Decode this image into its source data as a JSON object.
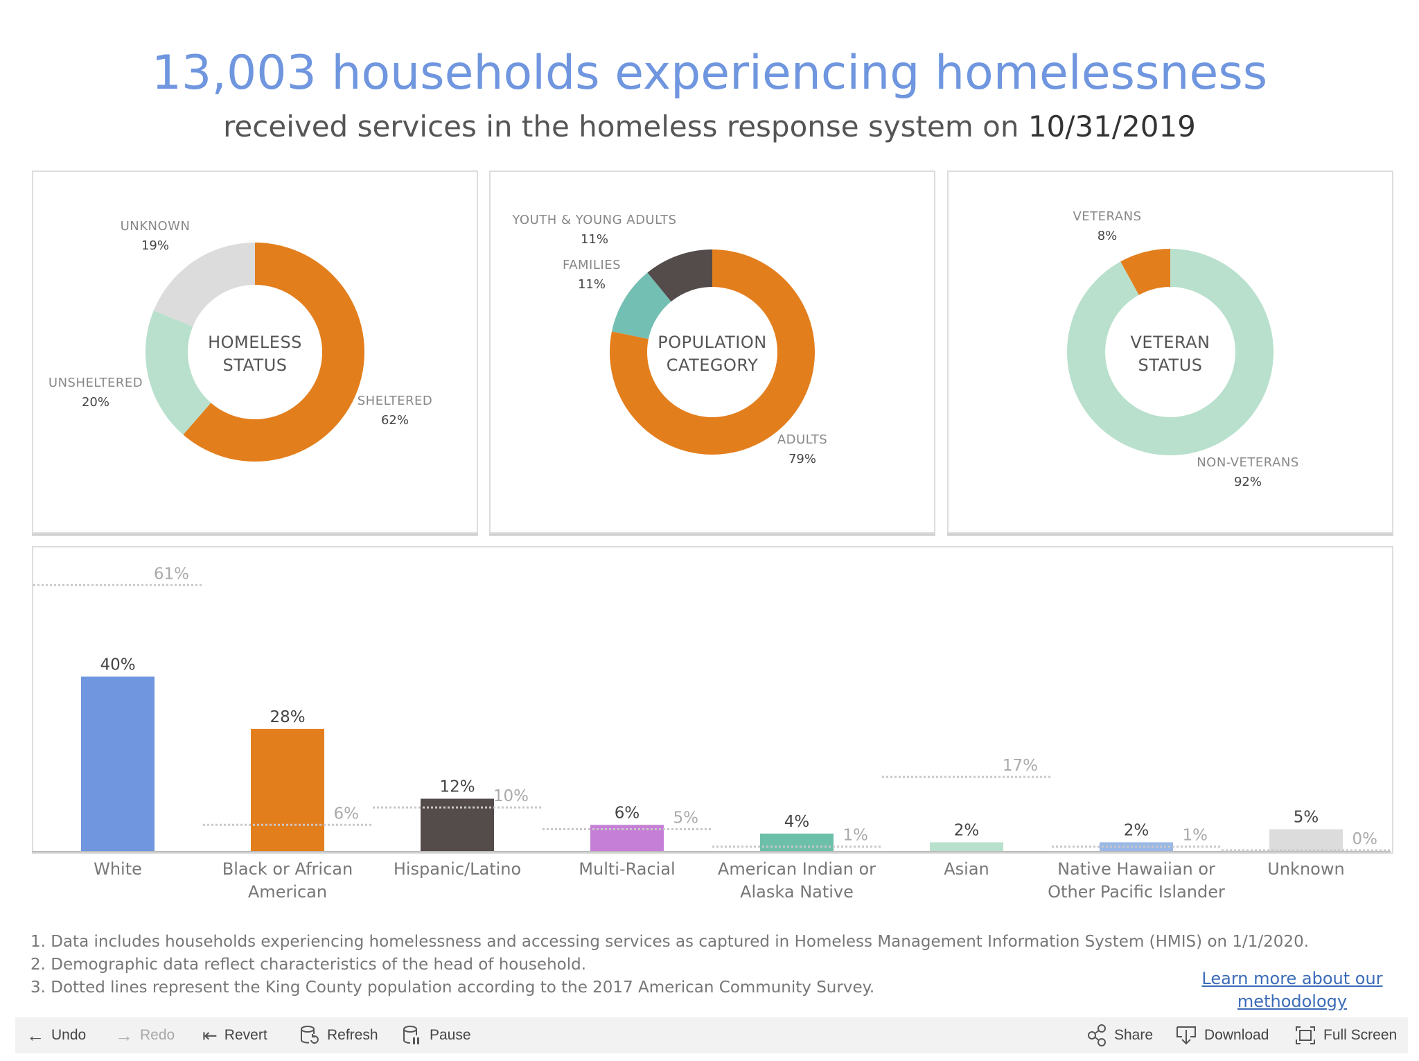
{
  "header": {
    "title": "13,003 households experiencing homelessness",
    "subtitle_prefix": "received services in the homeless response system on ",
    "subtitle_date": "10/31/2019"
  },
  "chart_data": [
    {
      "type": "pie",
      "center_label": [
        "HOMELESS",
        "STATUS"
      ],
      "slices": [
        {
          "label": "SHELTERED",
          "value": 62,
          "pct_label": "62%",
          "color": "#e37e1d"
        },
        {
          "label": "UNSHELTERED",
          "value": 20,
          "pct_label": "20%",
          "color": "#b8e0cc"
        },
        {
          "label": "UNKNOWN",
          "value": 19,
          "pct_label": "19%",
          "color": "#dcdcdc"
        }
      ]
    },
    {
      "type": "pie",
      "center_label": [
        "POPULATION",
        "CATEGORY"
      ],
      "slices": [
        {
          "label": "ADULTS",
          "value": 79,
          "pct_label": "79%",
          "color": "#e37e1d"
        },
        {
          "label": "FAMILIES",
          "value": 11,
          "pct_label": "11%",
          "color": "#74bfb3"
        },
        {
          "label": "YOUTH & YOUNG ADULTS",
          "value": 11,
          "pct_label": "11%",
          "color": "#544b4b"
        }
      ]
    },
    {
      "type": "pie",
      "center_label": [
        "VETERAN",
        "STATUS"
      ],
      "slices": [
        {
          "label": "NON-VETERANS",
          "value": 92,
          "pct_label": "92%",
          "color": "#b8e0cc"
        },
        {
          "label": "VETERANS",
          "value": 8,
          "pct_label": "8%",
          "color": "#e37e1d"
        }
      ]
    },
    {
      "type": "bar",
      "categories": [
        [
          "White"
        ],
        [
          "Black or African",
          "American"
        ],
        [
          "Hispanic/Latino"
        ],
        [
          "Multi-Racial"
        ],
        [
          "American Indian or",
          "Alaska Native"
        ],
        [
          "Asian"
        ],
        [
          "Native Hawaiian or",
          "Other Pacific Islander"
        ],
        [
          "Unknown"
        ]
      ],
      "series": [
        {
          "values": [
            40,
            28,
            12,
            6,
            4,
            2,
            2,
            5
          ],
          "labels": [
            "40%",
            "28%",
            "12%",
            "6%",
            "4%",
            "2%",
            "2%",
            "5%"
          ],
          "colors": [
            "#6f96de",
            "#e37e1d",
            "#544b4b",
            "#c67fd6",
            "#6cbfa9",
            "#b8e0cc",
            "#9ab7e6",
            "#dcdcdc"
          ]
        },
        {
          "style": "dotted",
          "values": [
            61,
            6,
            10,
            5,
            1,
            17,
            1,
            0
          ],
          "labels": [
            "61%",
            "6%",
            "10%",
            "5%",
            "1%",
            "17%",
            "1%",
            "0%"
          ]
        }
      ],
      "ylim": [
        0,
        62
      ]
    }
  ],
  "footnotes": [
    "1. Data includes households experiencing homelessness and accessing services as captured in Homeless Management Information System (HMIS) on 1/1/2020.",
    "2. Demographic data reflect characteristics of the head of household.",
    "3. Dotted lines represent the King County population according to the 2017 American Community Survey."
  ],
  "methodology_link": [
    "Learn more about our",
    "methodology"
  ],
  "toolbar": {
    "undo": "Undo",
    "redo": "Redo",
    "revert": "Revert",
    "refresh": "Refresh",
    "pause": "Pause",
    "share": "Share",
    "download": "Download",
    "full_screen": "Full Screen"
  }
}
